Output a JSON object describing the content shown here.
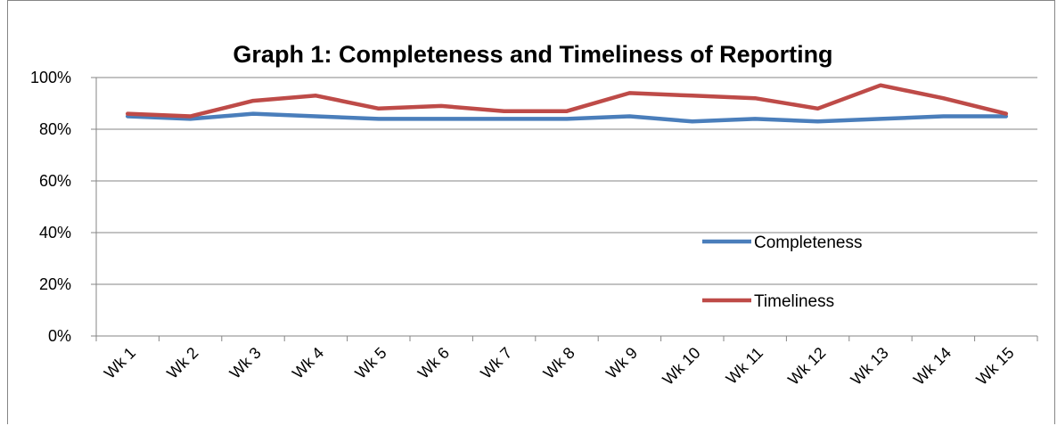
{
  "chart_data": {
    "type": "line",
    "title": "Graph 1: Completeness and Timeliness of Reporting",
    "xlabel": "",
    "ylabel": "",
    "categories": [
      "Wk 1",
      "Wk 2",
      "Wk 3",
      "Wk 4",
      "Wk 5",
      "Wk 6",
      "Wk 7",
      "Wk 8",
      "Wk 9",
      "Wk 10",
      "Wk 11",
      "Wk 12",
      "Wk 13",
      "Wk 14",
      "Wk 15"
    ],
    "y_ticks": [
      "0%",
      "20%",
      "40%",
      "60%",
      "80%",
      "100%"
    ],
    "ylim": [
      0,
      100
    ],
    "grid": true,
    "legend_position": "right, inside plot",
    "series": [
      {
        "name": "Completeness",
        "color": "#4a7ebb",
        "values": [
          85,
          84,
          86,
          85,
          84,
          84,
          84,
          84,
          85,
          83,
          84,
          83,
          84,
          85,
          85
        ]
      },
      {
        "name": "Timeliness",
        "color": "#be4b48",
        "values": [
          86,
          85,
          91,
          93,
          88,
          89,
          87,
          87,
          94,
          93,
          92,
          88,
          97,
          92,
          86
        ]
      }
    ]
  }
}
